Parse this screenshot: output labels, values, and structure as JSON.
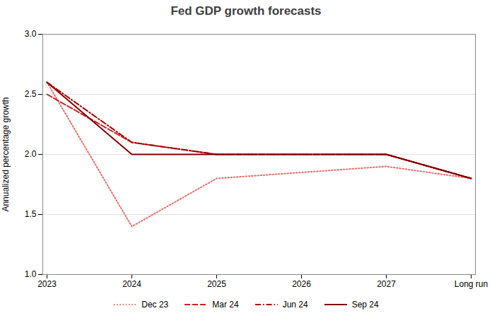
{
  "chart_data": {
    "type": "line",
    "title": "Fed GDP growth forecasts",
    "ylabel": "Annualized percentage growth",
    "categories": [
      "2023",
      "2024",
      "2025",
      "2026",
      "2027",
      "Long run"
    ],
    "series": [
      {
        "name": "Dec 23",
        "color": "#e87070",
        "line_style": "dotted",
        "values": [
          2.6,
          1.4,
          1.8,
          1.85,
          1.9,
          1.8
        ]
      },
      {
        "name": "Mar 24",
        "color": "#cc2222",
        "line_style": "dashed",
        "values": [
          2.5,
          2.1,
          2.0,
          2.0,
          2.0,
          1.8
        ]
      },
      {
        "name": "Jun 24",
        "color": "#aa0000",
        "line_style": "dashdot",
        "values": [
          2.6,
          2.1,
          2.0,
          2.0,
          2.0,
          1.8
        ]
      },
      {
        "name": "Sep 24",
        "color": "#800000",
        "line_style": "solid",
        "values": [
          2.6,
          2.0,
          2.0,
          2.0,
          2.0,
          1.8
        ]
      }
    ],
    "ylim": [
      1.0,
      3.0
    ],
    "yticks": [
      {
        "value": 1.0,
        "label": "1.0"
      },
      1.5,
      {
        "value": 2.0,
        "label": "2.0"
      },
      2.5,
      {
        "value": 3.0,
        "label": "3.0"
      }
    ],
    "grid": true,
    "legend": "bottom"
  }
}
